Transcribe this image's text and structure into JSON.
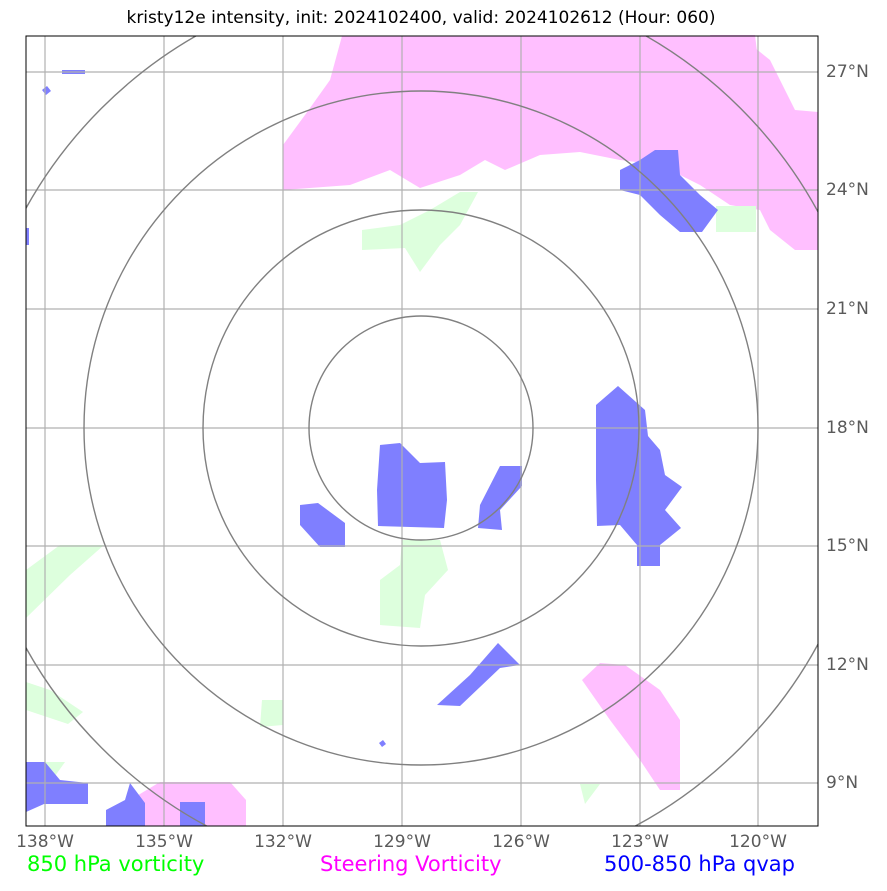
{
  "title": "kristy12e intensity, init: 2024102400, valid: 2024102612 (Hour: 060)",
  "x_ticks": [
    "138°W",
    "135°W",
    "132°W",
    "129°W",
    "126°W",
    "123°W",
    "120°W"
  ],
  "y_ticks": [
    "27°N",
    "24°N",
    "21°N",
    "18°N",
    "15°N",
    "12°N",
    "9°N"
  ],
  "legend": {
    "vort850": "850 hPa vorticity",
    "steering": "Steering Vorticity",
    "qvap": "500-850 hPa qvap"
  },
  "colors": {
    "vort850": "#00ff00",
    "steering": "#ff00ff",
    "qvap": "#0000ff",
    "vort850_fill": "#ddffdd",
    "steering_fill": "#ffbfff",
    "qvap_fill": "#7f7fff",
    "rings": "#808080",
    "grid": "#b0b0b0"
  },
  "map": {
    "lon_range": [
      -138.5,
      -118.5
    ],
    "lat_range": [
      8,
      28
    ],
    "center_lon": -128.5,
    "center_lat": 18
  }
}
